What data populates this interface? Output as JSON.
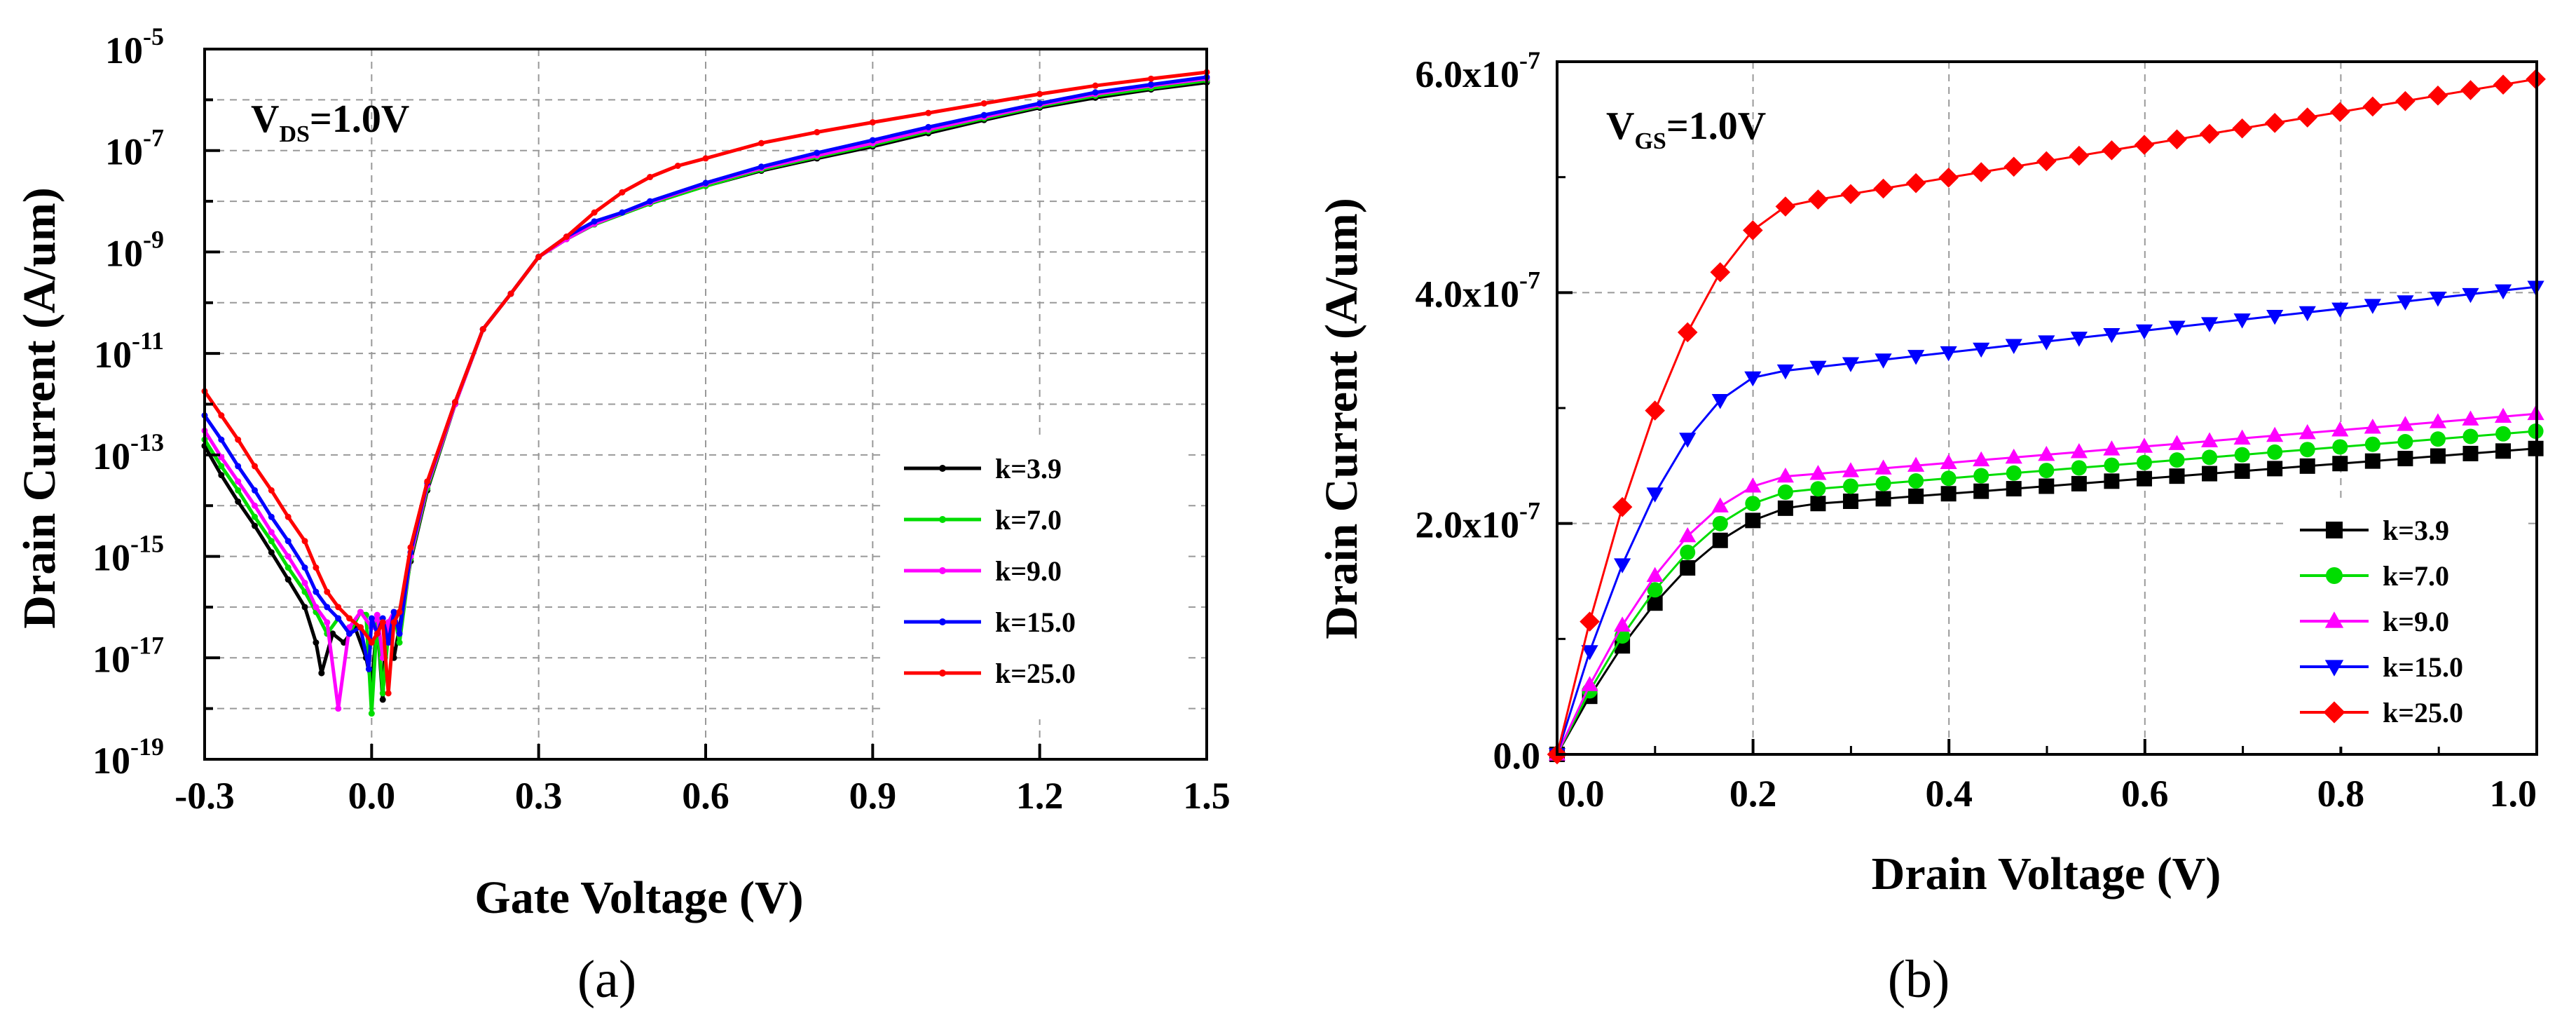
{
  "colors": {
    "k=3.9": "#000000",
    "k=7.0": "#00dd00",
    "k=9.0": "#ff00ff",
    "k=15.0": "#0000ff",
    "k=25.0": "#ff0000"
  },
  "chart_data": [
    {
      "type": "line",
      "panel_label": "(a)",
      "xlabel": "Gate Voltage (V)",
      "ylabel": "Drain Current (A/um)",
      "annotation": {
        "main": "V",
        "sub": "DS",
        "rest": "=1.0V"
      },
      "x_range": [
        -0.3,
        1.5
      ],
      "y_scale": "log",
      "y_range": [
        1e-19,
        1e-05
      ],
      "x_ticks": [
        "-0.3",
        "0.0",
        "0.3",
        "0.6",
        "0.9",
        "1.2",
        "1.5"
      ],
      "y_ticks": [
        {
          "base": "10",
          "exp": "-5"
        },
        {
          "base": "10",
          "exp": "-7"
        },
        {
          "base": "10",
          "exp": "-9"
        },
        {
          "base": "10",
          "exp": "-11"
        },
        {
          "base": "10",
          "exp": "-13"
        },
        {
          "base": "10",
          "exp": "-15"
        },
        {
          "base": "10",
          "exp": "-17"
        },
        {
          "base": "10",
          "exp": "-19"
        }
      ],
      "grid": true,
      "legend_position": "bottom-right",
      "series": [
        {
          "name": "k=3.9",
          "marker": "dot",
          "x": [
            -0.3,
            -0.27,
            -0.24,
            -0.21,
            -0.18,
            -0.15,
            -0.12,
            -0.1,
            -0.09,
            -0.07,
            -0.05,
            -0.03,
            -0.01,
            0.0,
            0.01,
            0.02,
            0.025,
            0.03,
            0.04,
            0.05,
            0.07,
            0.1,
            0.15,
            0.2,
            0.25,
            0.3,
            0.35,
            0.4,
            0.5,
            0.6,
            0.7,
            0.8,
            0.9,
            1.0,
            1.1,
            1.2,
            1.3,
            1.4,
            1.5
          ],
          "y": [
            1.5e-13,
            4e-14,
            1.2e-14,
            4e-15,
            1.2e-15,
            3.5e-16,
            1e-16,
            2e-17,
            5e-18,
            3e-17,
            2e-17,
            4e-17,
            1e-17,
            3e-18,
            5e-17,
            1.5e-18,
            3e-17,
            5e-17,
            1e-17,
            4e-17,
            8e-16,
            2e-14,
            1e-12,
            3e-11,
            1.5e-10,
            8e-10,
            1.8e-09,
            3.5e-09,
            9e-09,
            2e-08,
            4e-08,
            7e-08,
            1.2e-07,
            2.2e-07,
            4e-07,
            7e-07,
            1.1e-06,
            1.6e-06,
            2.2e-06
          ]
        },
        {
          "name": "k=7.0",
          "marker": "dot",
          "x": [
            -0.3,
            -0.27,
            -0.24,
            -0.21,
            -0.18,
            -0.15,
            -0.12,
            -0.1,
            -0.08,
            -0.06,
            -0.04,
            -0.02,
            -0.01,
            0.0,
            0.01,
            0.02,
            0.03,
            0.04,
            0.05,
            0.07,
            0.1,
            0.15,
            0.2,
            0.25,
            0.3,
            0.35,
            0.4,
            0.5,
            0.6,
            0.7,
            0.8,
            0.9,
            1.0,
            1.1,
            1.2,
            1.3,
            1.4,
            1.5
          ],
          "y": [
            2e-13,
            6e-14,
            2e-14,
            6e-15,
            2e-15,
            6e-16,
            2e-16,
            8e-17,
            3e-17,
            6e-17,
            3e-17,
            8e-17,
            7e-17,
            8e-19,
            6e-17,
            2e-18,
            3e-17,
            8e-17,
            2e-17,
            9e-16,
            2.2e-14,
            1e-12,
            3e-11,
            1.5e-10,
            8e-10,
            1.8e-09,
            3.5e-09,
            9e-09,
            2e-08,
            4.2e-08,
            7.5e-08,
            1.3e-07,
            2.4e-07,
            4.3e-07,
            7.5e-07,
            1.2e-06,
            1.7e-06,
            2.4e-06
          ]
        },
        {
          "name": "k=9.0",
          "marker": "dot",
          "x": [
            -0.3,
            -0.27,
            -0.24,
            -0.21,
            -0.18,
            -0.15,
            -0.12,
            -0.1,
            -0.08,
            -0.06,
            -0.04,
            -0.02,
            0.0,
            0.01,
            0.02,
            0.03,
            0.04,
            0.05,
            0.07,
            0.1,
            0.15,
            0.2,
            0.25,
            0.3,
            0.35,
            0.4,
            0.5,
            0.6,
            0.7,
            0.8,
            0.9,
            1.0,
            1.1,
            1.2,
            1.3,
            1.4,
            1.5
          ],
          "y": [
            3e-13,
            9e-14,
            3e-14,
            1e-14,
            3e-15,
            1e-15,
            3e-16,
            1e-16,
            5e-17,
            1e-18,
            4e-17,
            8e-17,
            4e-17,
            7e-17,
            1e-17,
            5e-17,
            8e-17,
            3e-17,
            1e-15,
            2.5e-14,
            1e-12,
            3e-11,
            1.5e-10,
            8e-10,
            1.8e-09,
            3.6e-09,
            9.5e-09,
            2.2e-08,
            4.5e-08,
            8e-08,
            1.4e-07,
            2.6e-07,
            4.6e-07,
            8e-07,
            1.3e-06,
            1.9e-06,
            2.6e-06
          ]
        },
        {
          "name": "k=15.0",
          "marker": "dot",
          "x": [
            -0.3,
            -0.27,
            -0.24,
            -0.21,
            -0.18,
            -0.15,
            -0.12,
            -0.1,
            -0.08,
            -0.06,
            -0.04,
            -0.02,
            -0.005,
            0.0,
            0.01,
            0.02,
            0.03,
            0.04,
            0.05,
            0.07,
            0.1,
            0.15,
            0.2,
            0.25,
            0.3,
            0.35,
            0.4,
            0.45,
            0.5,
            0.6,
            0.7,
            0.8,
            0.9,
            1.0,
            1.1,
            1.2,
            1.3,
            1.4,
            1.5
          ],
          "y": [
            6e-13,
            2e-13,
            6e-14,
            2e-14,
            6e-15,
            2e-15,
            6e-16,
            2e-16,
            1e-16,
            6e-17,
            3e-17,
            4e-17,
            6e-18,
            6e-17,
            3e-17,
            6e-17,
            2e-17,
            8e-17,
            3e-17,
            1.2e-15,
            2.8e-14,
            1.1e-12,
            3e-11,
            1.5e-10,
            8e-10,
            2e-09,
            4e-09,
            6e-09,
            1e-08,
            2.3e-08,
            4.8e-08,
            9e-08,
            1.6e-07,
            2.9e-07,
            5e-07,
            8.5e-07,
            1.4e-06,
            2e-06,
            2.8e-06
          ]
        },
        {
          "name": "k=25.0",
          "marker": "dot",
          "x": [
            -0.3,
            -0.27,
            -0.24,
            -0.21,
            -0.18,
            -0.15,
            -0.12,
            -0.1,
            -0.08,
            -0.06,
            -0.04,
            -0.02,
            0.0,
            0.01,
            0.02,
            0.03,
            0.04,
            0.05,
            0.07,
            0.1,
            0.15,
            0.2,
            0.25,
            0.3,
            0.35,
            0.4,
            0.45,
            0.5,
            0.55,
            0.6,
            0.7,
            0.8,
            0.9,
            1.0,
            1.1,
            1.2,
            1.3,
            1.4,
            1.5
          ],
          "y": [
            1.8e-12,
            6e-13,
            2e-13,
            6e-14,
            2e-14,
            6e-15,
            2e-15,
            6e-16,
            2e-16,
            1e-16,
            6e-17,
            4e-17,
            2e-17,
            3e-17,
            5e-17,
            2e-18,
            5e-17,
            8e-17,
            1.5e-15,
            3e-14,
            1.1e-12,
            3e-11,
            1.5e-10,
            8e-10,
            2e-09,
            6e-09,
            1.5e-08,
            3e-08,
            5e-08,
            7e-08,
            1.4e-07,
            2.3e-07,
            3.6e-07,
            5.5e-07,
            8.5e-07,
            1.3e-06,
            1.9e-06,
            2.6e-06,
            3.5e-06
          ]
        }
      ]
    },
    {
      "type": "line",
      "panel_label": "(b)",
      "xlabel": "Drain Voltage (V)",
      "ylabel": "Drain Current (A/um)",
      "annotation": {
        "main": "V",
        "sub": "GS",
        "rest": "=1.0V"
      },
      "x_range": [
        0.0,
        1.0
      ],
      "y_range": [
        0.0,
        6e-07
      ],
      "x_ticks": [
        "0.0",
        "0.2",
        "0.4",
        "0.6",
        "0.8",
        "1.0"
      ],
      "y_ticks": [
        {
          "value": 0.0,
          "label": "0.0"
        },
        {
          "value": 2e-07,
          "label": "2.0x10",
          "exp": "-7"
        },
        {
          "value": 4e-07,
          "label": "4.0x10",
          "exp": "-7"
        },
        {
          "value": 6e-07,
          "label": "6.0x10",
          "exp": "-7"
        }
      ],
      "grid": true,
      "legend_position": "bottom-right",
      "series": [
        {
          "name": "k=3.9",
          "marker": "square",
          "isat": 2.65e-07,
          "vsat": 0.27
        },
        {
          "name": "k=7.0",
          "marker": "circle",
          "isat": 2.8e-07,
          "vsat": 0.26
        },
        {
          "name": "k=9.0",
          "marker": "triangle-up",
          "isat": 2.95e-07,
          "vsat": 0.25
        },
        {
          "name": "k=15.0",
          "marker": "triangle-down",
          "isat": 4.05e-07,
          "vsat": 0.23
        },
        {
          "name": "k=25.0",
          "marker": "diamond",
          "isat": 5.85e-07,
          "vsat": 0.26
        }
      ]
    }
  ]
}
